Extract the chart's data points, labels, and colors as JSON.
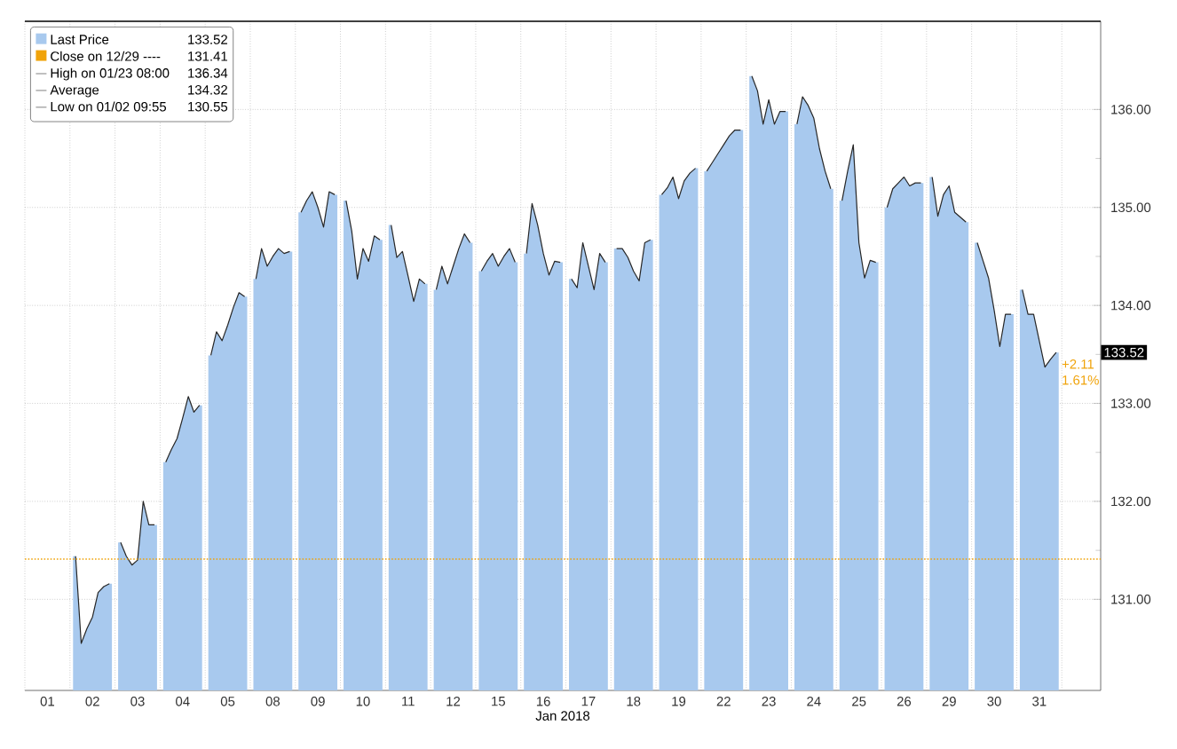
{
  "chart_data": {
    "type": "area",
    "xlabel": "Jan 2018",
    "categories": [
      null,
      null,
      null,
      "01",
      null,
      null,
      null,
      null,
      null,
      null,
      null,
      "02",
      null,
      null,
      null,
      null,
      null,
      null,
      null,
      "03",
      null,
      null,
      null,
      null,
      null,
      null,
      null,
      "04",
      null,
      null,
      null,
      null,
      null,
      null,
      null,
      "05",
      null,
      null,
      null,
      null,
      null,
      null,
      null,
      "08",
      null,
      null,
      null,
      null,
      null,
      null,
      null,
      "09",
      null,
      null,
      null,
      null,
      null,
      null,
      null,
      "10",
      null,
      null,
      null,
      null,
      null,
      null,
      null,
      "11",
      null,
      null,
      null,
      null,
      null,
      null,
      null,
      "12",
      null,
      null,
      null,
      null,
      null,
      null,
      null,
      "15",
      null,
      null,
      null,
      null,
      null,
      null,
      null,
      "16",
      null,
      null,
      null,
      null,
      null,
      null,
      null,
      "17",
      null,
      null,
      null,
      null,
      null,
      null,
      null,
      "18",
      null,
      null,
      null,
      null,
      null,
      null,
      null,
      "19",
      null,
      null,
      null,
      null,
      null,
      null,
      null,
      "22",
      null,
      null,
      null,
      null,
      null,
      null,
      null,
      "23",
      null,
      null,
      null,
      null,
      null,
      null,
      null,
      "24",
      null,
      null,
      null,
      null,
      null,
      null,
      null,
      "25",
      null,
      null,
      null,
      null,
      null,
      null,
      null,
      "26",
      null,
      null,
      null,
      null,
      null,
      null,
      null,
      "29",
      null,
      null,
      null,
      null,
      null,
      null,
      null,
      "30",
      null,
      null,
      null,
      null,
      null,
      null,
      null,
      "31",
      null,
      null,
      null,
      null
    ],
    "series": [
      {
        "name": "Last Price",
        "color": "#a8c9ee",
        "values": [
          null,
          null,
          null,
          null,
          null,
          null,
          null,
          null,
          131.44,
          130.55,
          130.7,
          130.82,
          131.07,
          131.13,
          131.16,
          null,
          131.58,
          131.44,
          131.35,
          131.4,
          132.0,
          131.76,
          131.76,
          null,
          132.4,
          132.53,
          132.64,
          132.85,
          133.07,
          132.91,
          132.98,
          null,
          133.49,
          133.73,
          133.64,
          133.8,
          133.98,
          134.13,
          134.09,
          null,
          134.27,
          134.58,
          134.4,
          134.5,
          134.58,
          134.53,
          134.55,
          null,
          134.95,
          135.07,
          135.16,
          135.0,
          134.8,
          135.16,
          135.13,
          null,
          135.07,
          134.76,
          134.27,
          134.58,
          134.45,
          134.71,
          134.67,
          null,
          134.82,
          134.49,
          134.55,
          134.3,
          134.04,
          134.27,
          134.22,
          null,
          134.16,
          134.4,
          134.22,
          134.4,
          134.58,
          134.73,
          134.64,
          null,
          134.35,
          134.45,
          134.53,
          134.4,
          134.5,
          134.58,
          134.44,
          null,
          134.53,
          135.04,
          134.82,
          134.53,
          134.31,
          134.45,
          134.44,
          null,
          134.27,
          134.18,
          134.64,
          134.4,
          134.16,
          134.53,
          134.44,
          null,
          134.58,
          134.58,
          134.49,
          134.35,
          134.25,
          134.64,
          134.67,
          null,
          135.13,
          135.2,
          135.31,
          135.09,
          135.27,
          135.35,
          135.4,
          null,
          135.37,
          135.46,
          135.55,
          135.64,
          135.73,
          135.79,
          135.79,
          null,
          136.34,
          136.19,
          135.85,
          136.1,
          135.85,
          135.98,
          135.98,
          null,
          135.85,
          136.13,
          136.04,
          135.91,
          135.6,
          135.37,
          135.19,
          null,
          135.07,
          135.37,
          135.64,
          134.64,
          134.28,
          134.46,
          134.44,
          null,
          135.0,
          135.19,
          135.25,
          135.31,
          135.22,
          135.25,
          135.25,
          null,
          135.31,
          134.91,
          135.13,
          135.22,
          134.95,
          134.9,
          134.85,
          null,
          134.64,
          134.46,
          134.28,
          133.95,
          133.58,
          133.91,
          133.91,
          null,
          134.16,
          133.91,
          133.91,
          133.64,
          133.37,
          133.45,
          133.52,
          null
        ]
      }
    ],
    "ylim": [
      130.07,
      136.9
    ],
    "yticks": [
      {
        "value": 131,
        "label": "131.00"
      },
      {
        "value": 132,
        "label": "132.00"
      },
      {
        "value": 133,
        "label": "133.00"
      },
      {
        "value": 134,
        "label": "134.00"
      },
      {
        "value": 135,
        "label": "135.00"
      },
      {
        "value": 136,
        "label": "136.00"
      }
    ],
    "grid": true,
    "legend": "top left",
    "ref_lines": [
      {
        "axis": "y",
        "value": 131.41,
        "label": "Close on 12/29 ----",
        "color": "#f0a30a",
        "line_style": "dotted"
      }
    ],
    "annotations": [
      "133.52",
      "131.41",
      "High on 01/23 08:00",
      "136.34",
      "Average",
      "134.32",
      "Low on 01/02 09:55",
      "130.55",
      "+2.11",
      "1.61%"
    ]
  }
}
